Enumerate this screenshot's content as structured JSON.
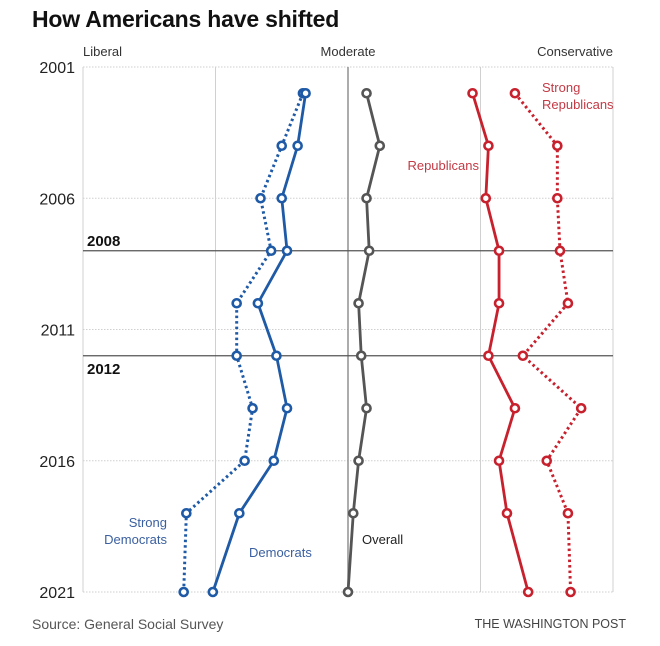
{
  "header": {
    "title": "How Americans have shifted"
  },
  "footer": {
    "source": "Source: General Social Survey",
    "credit": "THE WASHINGTON POST"
  },
  "colors": {
    "democrat": "#1f5aa6",
    "republican": "#c8212e",
    "overall": "#555555",
    "grid": "#d0d0d0",
    "moderate_axis": "#888888",
    "event_line": "#555555"
  },
  "chart_data": {
    "type": "line",
    "title": "How Americans have shifted",
    "orientation": "vertical-time",
    "xlabel_left": "Liberal",
    "xlabel_center": "Moderate",
    "xlabel_right": "Conservative",
    "xlim": [
      -1,
      1
    ],
    "x_gridlines": [
      -1,
      -0.5,
      0,
      0.5,
      1
    ],
    "ylim": [
      2001,
      2021
    ],
    "y_ticks": [
      2001,
      2006,
      2011,
      2016,
      2021
    ],
    "grid": true,
    "annotations": [
      {
        "year": 2008,
        "label": "2008"
      },
      {
        "year": 2012,
        "label": "2012"
      }
    ],
    "years": [
      2002,
      2004,
      2006,
      2008,
      2010,
      2012,
      2014,
      2016,
      2018,
      2021
    ],
    "series": [
      {
        "name": "Strong Democrats",
        "label_lines": [
          "Strong",
          "Democrats"
        ],
        "party": "democrat",
        "style": "dotted",
        "values": [
          -0.17,
          -0.25,
          -0.33,
          -0.29,
          -0.42,
          -0.42,
          -0.36,
          -0.39,
          -0.61,
          -0.62
        ]
      },
      {
        "name": "Democrats",
        "label_lines": [
          "Democrats"
        ],
        "party": "democrat",
        "style": "solid",
        "values": [
          -0.16,
          -0.19,
          -0.25,
          -0.23,
          -0.34,
          -0.27,
          -0.23,
          -0.28,
          -0.41,
          -0.51
        ]
      },
      {
        "name": "Overall",
        "label_lines": [
          "Overall"
        ],
        "party": "overall",
        "style": "solid",
        "values": [
          0.07,
          0.12,
          0.07,
          0.08,
          0.04,
          0.05,
          0.07,
          0.04,
          0.02,
          0.0
        ]
      },
      {
        "name": "Republicans",
        "label_lines": [
          "Republicans"
        ],
        "party": "republican",
        "style": "solid",
        "values": [
          0.47,
          0.53,
          0.52,
          0.57,
          0.57,
          0.53,
          0.63,
          0.57,
          0.6,
          0.68
        ]
      },
      {
        "name": "Strong Republicans",
        "label_lines": [
          "Strong",
          "Republicans"
        ],
        "party": "republican",
        "style": "dotted",
        "values": [
          0.63,
          0.79,
          0.79,
          0.8,
          0.83,
          0.66,
          0.88,
          0.75,
          0.83,
          0.84
        ]
      }
    ]
  }
}
